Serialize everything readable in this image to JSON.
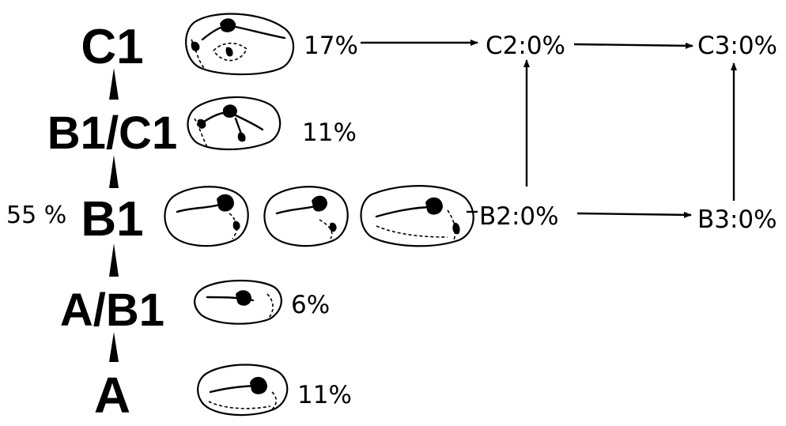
{
  "stages": {
    "c1": "C1",
    "b1c1": "B1/C1",
    "b1": "B1",
    "ab1": "A/B1",
    "a": "A"
  },
  "percentages": {
    "c1": "17%",
    "b1c1": "11%",
    "b1_side": "55 %",
    "ab1": "6%",
    "a": "11%"
  },
  "outcomes": {
    "c2": "C2:0%",
    "c3": "C3:0%",
    "b2": "B2:0%",
    "b3": "B3:0%"
  },
  "colors": {
    "ink": "#000000",
    "background": "#ffffff"
  }
}
